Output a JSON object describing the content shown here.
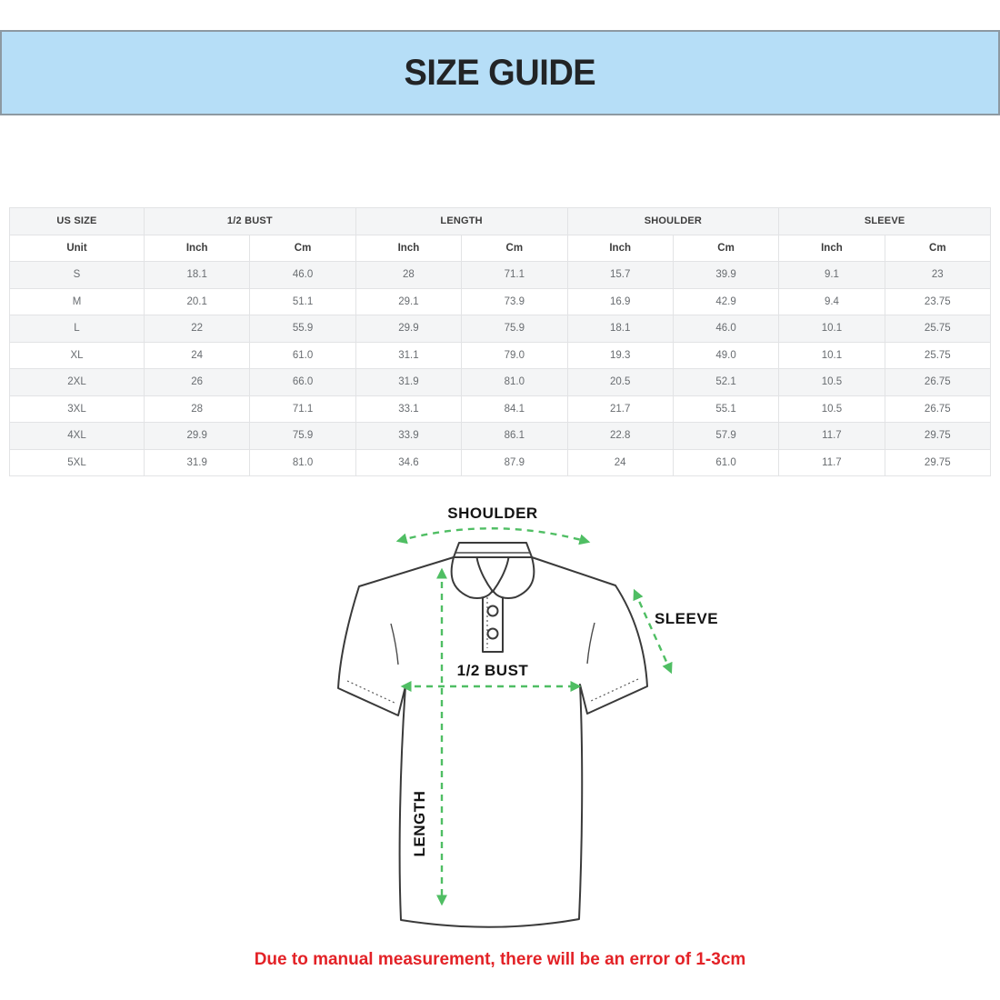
{
  "banner": {
    "title": "SIZE GUIDE",
    "bg_color": "#b6def7"
  },
  "table": {
    "group_headers": [
      "US SIZE",
      "1/2 BUST",
      "LENGTH",
      "SHOULDER",
      "SLEEVE"
    ],
    "unit_row": [
      "Unit",
      "Inch",
      "Cm",
      "Inch",
      "Cm",
      "Inch",
      "Cm",
      "Inch",
      "Cm"
    ],
    "rows": [
      [
        "S",
        "18.1",
        "46.0",
        "28",
        "71.1",
        "15.7",
        "39.9",
        "9.1",
        "23"
      ],
      [
        "M",
        "20.1",
        "51.1",
        "29.1",
        "73.9",
        "16.9",
        "42.9",
        "9.4",
        "23.75"
      ],
      [
        "L",
        "22",
        "55.9",
        "29.9",
        "75.9",
        "18.1",
        "46.0",
        "10.1",
        "25.75"
      ],
      [
        "XL",
        "24",
        "61.0",
        "31.1",
        "79.0",
        "19.3",
        "49.0",
        "10.1",
        "25.75"
      ],
      [
        "2XL",
        "26",
        "66.0",
        "31.9",
        "81.0",
        "20.5",
        "52.1",
        "10.5",
        "26.75"
      ],
      [
        "3XL",
        "28",
        "71.1",
        "33.1",
        "84.1",
        "21.7",
        "55.1",
        "10.5",
        "26.75"
      ],
      [
        "4XL",
        "29.9",
        "75.9",
        "33.9",
        "86.1",
        "22.8",
        "57.9",
        "11.7",
        "29.75"
      ],
      [
        "5XL",
        "31.9",
        "81.0",
        "34.6",
        "87.9",
        "24",
        "61.0",
        "11.7",
        "29.75"
      ]
    ]
  },
  "diagram": {
    "labels": {
      "shoulder": "SHOULDER",
      "sleeve": "SLEEVE",
      "bust": "1/2 BUST",
      "length": "LENGTH"
    },
    "arrow_color": "#4fbe63"
  },
  "disclaimer": {
    "text": "Due to manual measurement, there will be an error of 1-3cm",
    "color": "#e32227"
  }
}
